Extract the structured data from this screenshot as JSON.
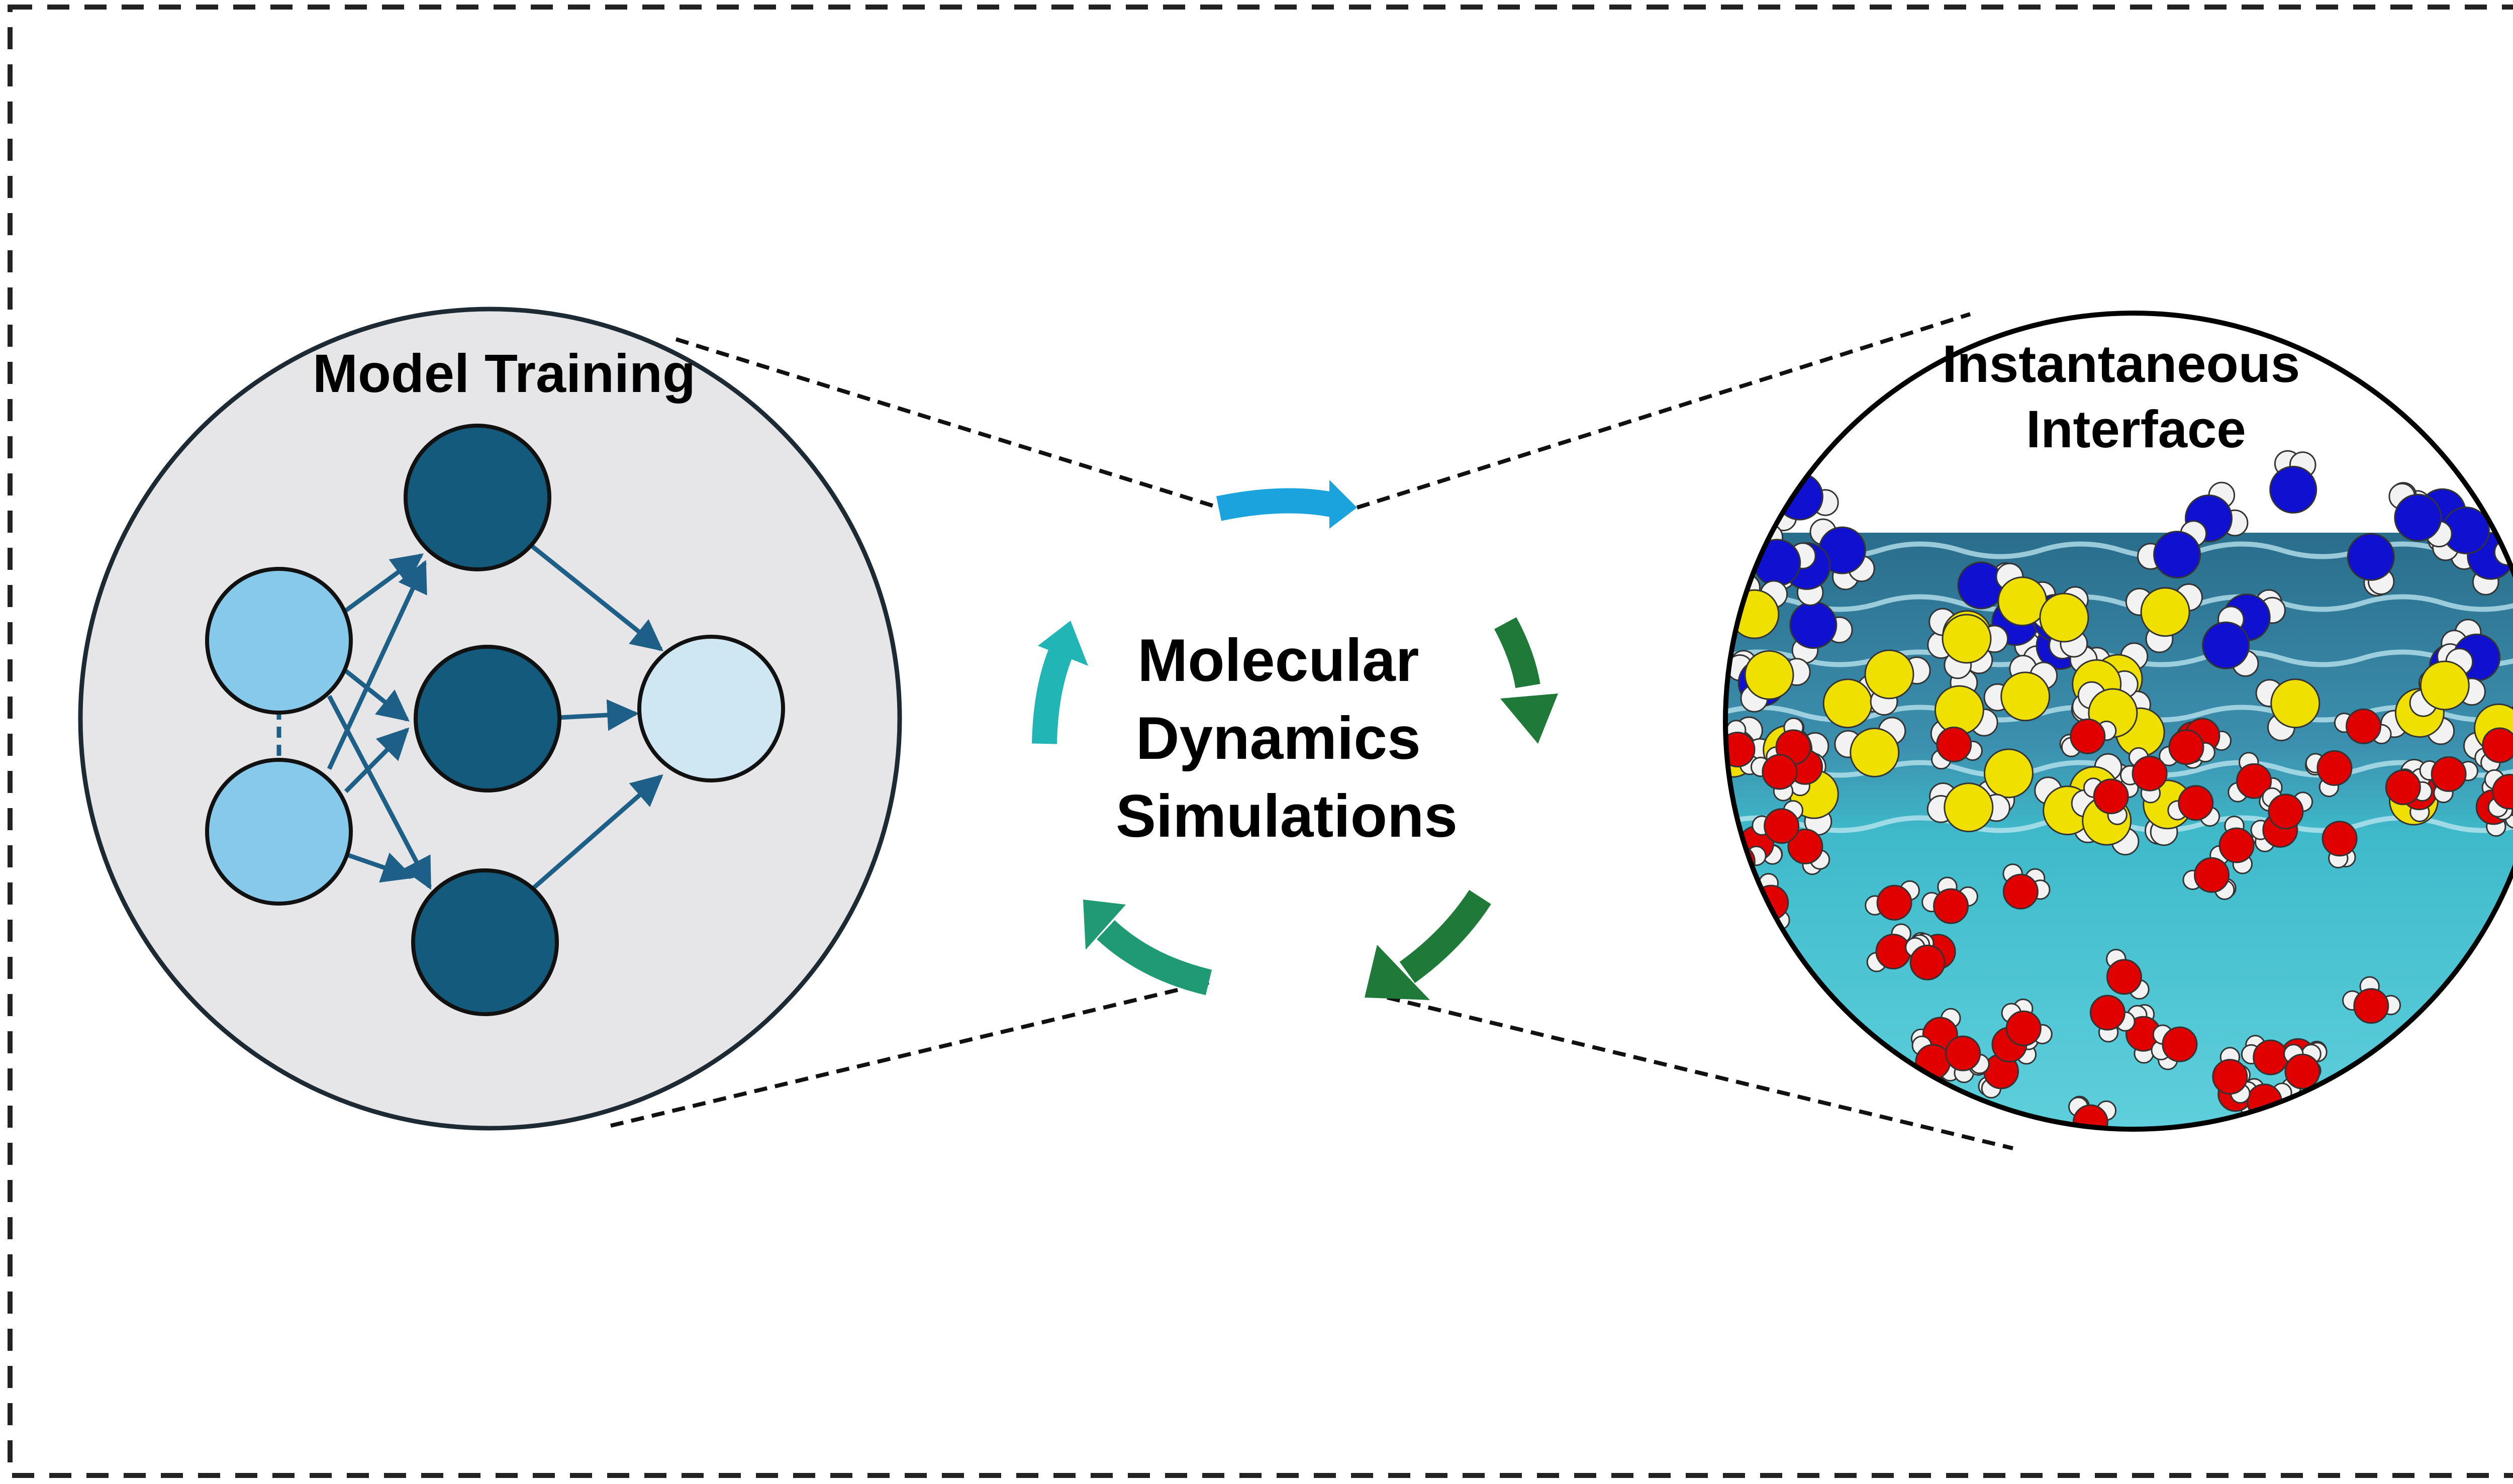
{
  "figure": {
    "left_panel": {
      "title": "Model Training"
    },
    "center": {
      "label_lines": [
        "Molecular",
        "Dynamics",
        "Simulations"
      ]
    },
    "right_panel": {
      "title_lines": [
        "Instantaneous",
        "Interface"
      ]
    }
  },
  "colors": {
    "border_dash": "#222222",
    "panel_bg": "#e6e6e8",
    "panel_stroke": "#1d2a33",
    "input_node": "#87c9ea",
    "hidden_node": "#135a7c",
    "output_node": "#cfe7f3",
    "edge": "#1d5f86",
    "arrow_top": "#1aa3dd",
    "arrow_right_top": "#1f7a3a",
    "arrow_right_bottom": "#1f7a3a",
    "arrow_bottom_left": "#1f9a74",
    "arrow_left": "#22b5b5",
    "water_deep": "#36b8c9",
    "water_surface": "#2d7a96",
    "atom_oxygen": "#e00000",
    "atom_nitrogen": "#1010d0",
    "atom_sulfur": "#f0e000",
    "atom_hydrogen": "#f2f2f2"
  },
  "icons": {
    "network": "neural-network-icon",
    "cycle": "cycle-arrows-icon",
    "molecules": "molecular-snapshot-icon"
  }
}
